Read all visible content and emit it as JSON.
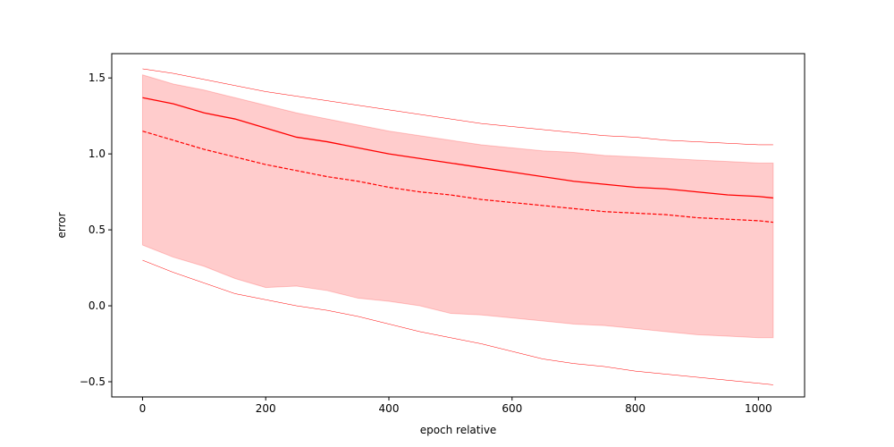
{
  "chart_data": {
    "type": "line",
    "xlabel": "epoch relative",
    "ylabel": "error",
    "xlim": [
      -50,
      1075
    ],
    "ylim": [
      -0.6,
      1.66
    ],
    "xticks": [
      0,
      200,
      400,
      600,
      800,
      1000
    ],
    "yticks": [
      -0.5,
      0.0,
      0.5,
      1.0,
      1.5
    ],
    "xtick_labels": [
      "0",
      "200",
      "400",
      "600",
      "800",
      "1000"
    ],
    "ytick_labels": [
      "−0.5",
      "0.0",
      "0.5",
      "1.0",
      "1.5"
    ],
    "grid": false,
    "legend": "none",
    "colors": {
      "line": "#ff0000",
      "band_fill": "#ff0000",
      "axes": "#000000"
    },
    "x": [
      0,
      50,
      100,
      150,
      200,
      250,
      300,
      350,
      400,
      450,
      500,
      550,
      600,
      650,
      700,
      750,
      800,
      850,
      900,
      950,
      1000,
      1024
    ],
    "series": [
      {
        "role": "mean",
        "style": "solid",
        "values": [
          1.37,
          1.33,
          1.27,
          1.23,
          1.17,
          1.11,
          1.08,
          1.04,
          1.0,
          0.97,
          0.94,
          0.91,
          0.88,
          0.85,
          0.82,
          0.8,
          0.78,
          0.77,
          0.75,
          0.73,
          0.72,
          0.71
        ]
      },
      {
        "role": "median",
        "style": "dashed",
        "values": [
          1.15,
          1.09,
          1.03,
          0.98,
          0.93,
          0.89,
          0.85,
          0.82,
          0.78,
          0.75,
          0.73,
          0.7,
          0.68,
          0.66,
          0.64,
          0.62,
          0.61,
          0.6,
          0.58,
          0.57,
          0.56,
          0.55
        ]
      },
      {
        "role": "band_upper",
        "style": "fill",
        "values": [
          1.52,
          1.46,
          1.42,
          1.37,
          1.32,
          1.27,
          1.23,
          1.19,
          1.15,
          1.12,
          1.09,
          1.06,
          1.04,
          1.02,
          1.01,
          0.99,
          0.98,
          0.97,
          0.96,
          0.95,
          0.94,
          0.94
        ]
      },
      {
        "role": "band_lower",
        "style": "fill",
        "values": [
          0.4,
          0.32,
          0.26,
          0.18,
          0.12,
          0.13,
          0.1,
          0.05,
          0.03,
          0.0,
          -0.05,
          -0.06,
          -0.08,
          -0.1,
          -0.12,
          -0.13,
          -0.15,
          -0.17,
          -0.19,
          -0.2,
          -0.21,
          -0.21
        ]
      },
      {
        "role": "outer_upper",
        "style": "thin",
        "values": [
          1.56,
          1.53,
          1.49,
          1.45,
          1.41,
          1.38,
          1.35,
          1.32,
          1.29,
          1.26,
          1.23,
          1.2,
          1.18,
          1.16,
          1.14,
          1.12,
          1.11,
          1.09,
          1.08,
          1.07,
          1.06,
          1.06
        ]
      },
      {
        "role": "outer_lower",
        "style": "thin",
        "values": [
          0.3,
          0.22,
          0.15,
          0.08,
          0.04,
          0.0,
          -0.03,
          -0.07,
          -0.12,
          -0.17,
          -0.21,
          -0.25,
          -0.3,
          -0.35,
          -0.38,
          -0.4,
          -0.43,
          -0.45,
          -0.47,
          -0.49,
          -0.51,
          -0.52
        ]
      }
    ]
  }
}
